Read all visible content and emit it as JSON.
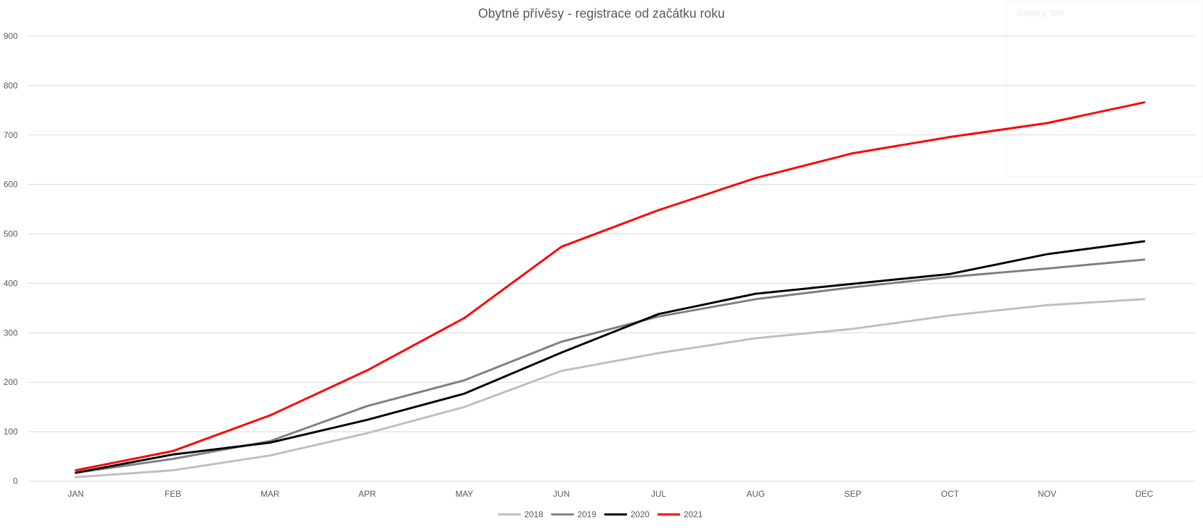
{
  "colors": {
    "s2018": "#bfbfbf",
    "s2019": "#7f7f7f",
    "s2020": "#000000",
    "s2021": "#ff0000",
    "grid": "#d9d9d9",
    "text": "#595959"
  },
  "overlay": {
    "label": "Snipping Tool"
  },
  "chart_data": {
    "type": "line",
    "title": "Obytné přívěsy - registrace od začátku roku",
    "xlabel": "",
    "ylabel": "",
    "categories": [
      "JAN",
      "FEB",
      "MAR",
      "APR",
      "MAY",
      "JUN",
      "JUL",
      "AUG",
      "SEP",
      "OCT",
      "NOV",
      "DEC"
    ],
    "ylim": [
      0,
      900
    ],
    "yticks": [
      0,
      100,
      200,
      300,
      400,
      500,
      600,
      700,
      800,
      900
    ],
    "grid": true,
    "legend_position": "bottom",
    "series": [
      {
        "name": "2018",
        "color": "#bfbfbf",
        "values": [
          8,
          22,
          52,
          97,
          150,
          223,
          259,
          289,
          308,
          335,
          356,
          368
        ]
      },
      {
        "name": "2019",
        "color": "#7f7f7f",
        "values": [
          17,
          45,
          81,
          152,
          204,
          282,
          333,
          368,
          392,
          413,
          430,
          448
        ]
      },
      {
        "name": "2020",
        "color": "#000000",
        "values": [
          17,
          54,
          78,
          124,
          177,
          260,
          338,
          379,
          399,
          419,
          459,
          485
        ]
      },
      {
        "name": "2021",
        "color": "#ff0000",
        "values": [
          22,
          61,
          133,
          224,
          330,
          474,
          548,
          613,
          663,
          696,
          724,
          766
        ]
      }
    ]
  }
}
